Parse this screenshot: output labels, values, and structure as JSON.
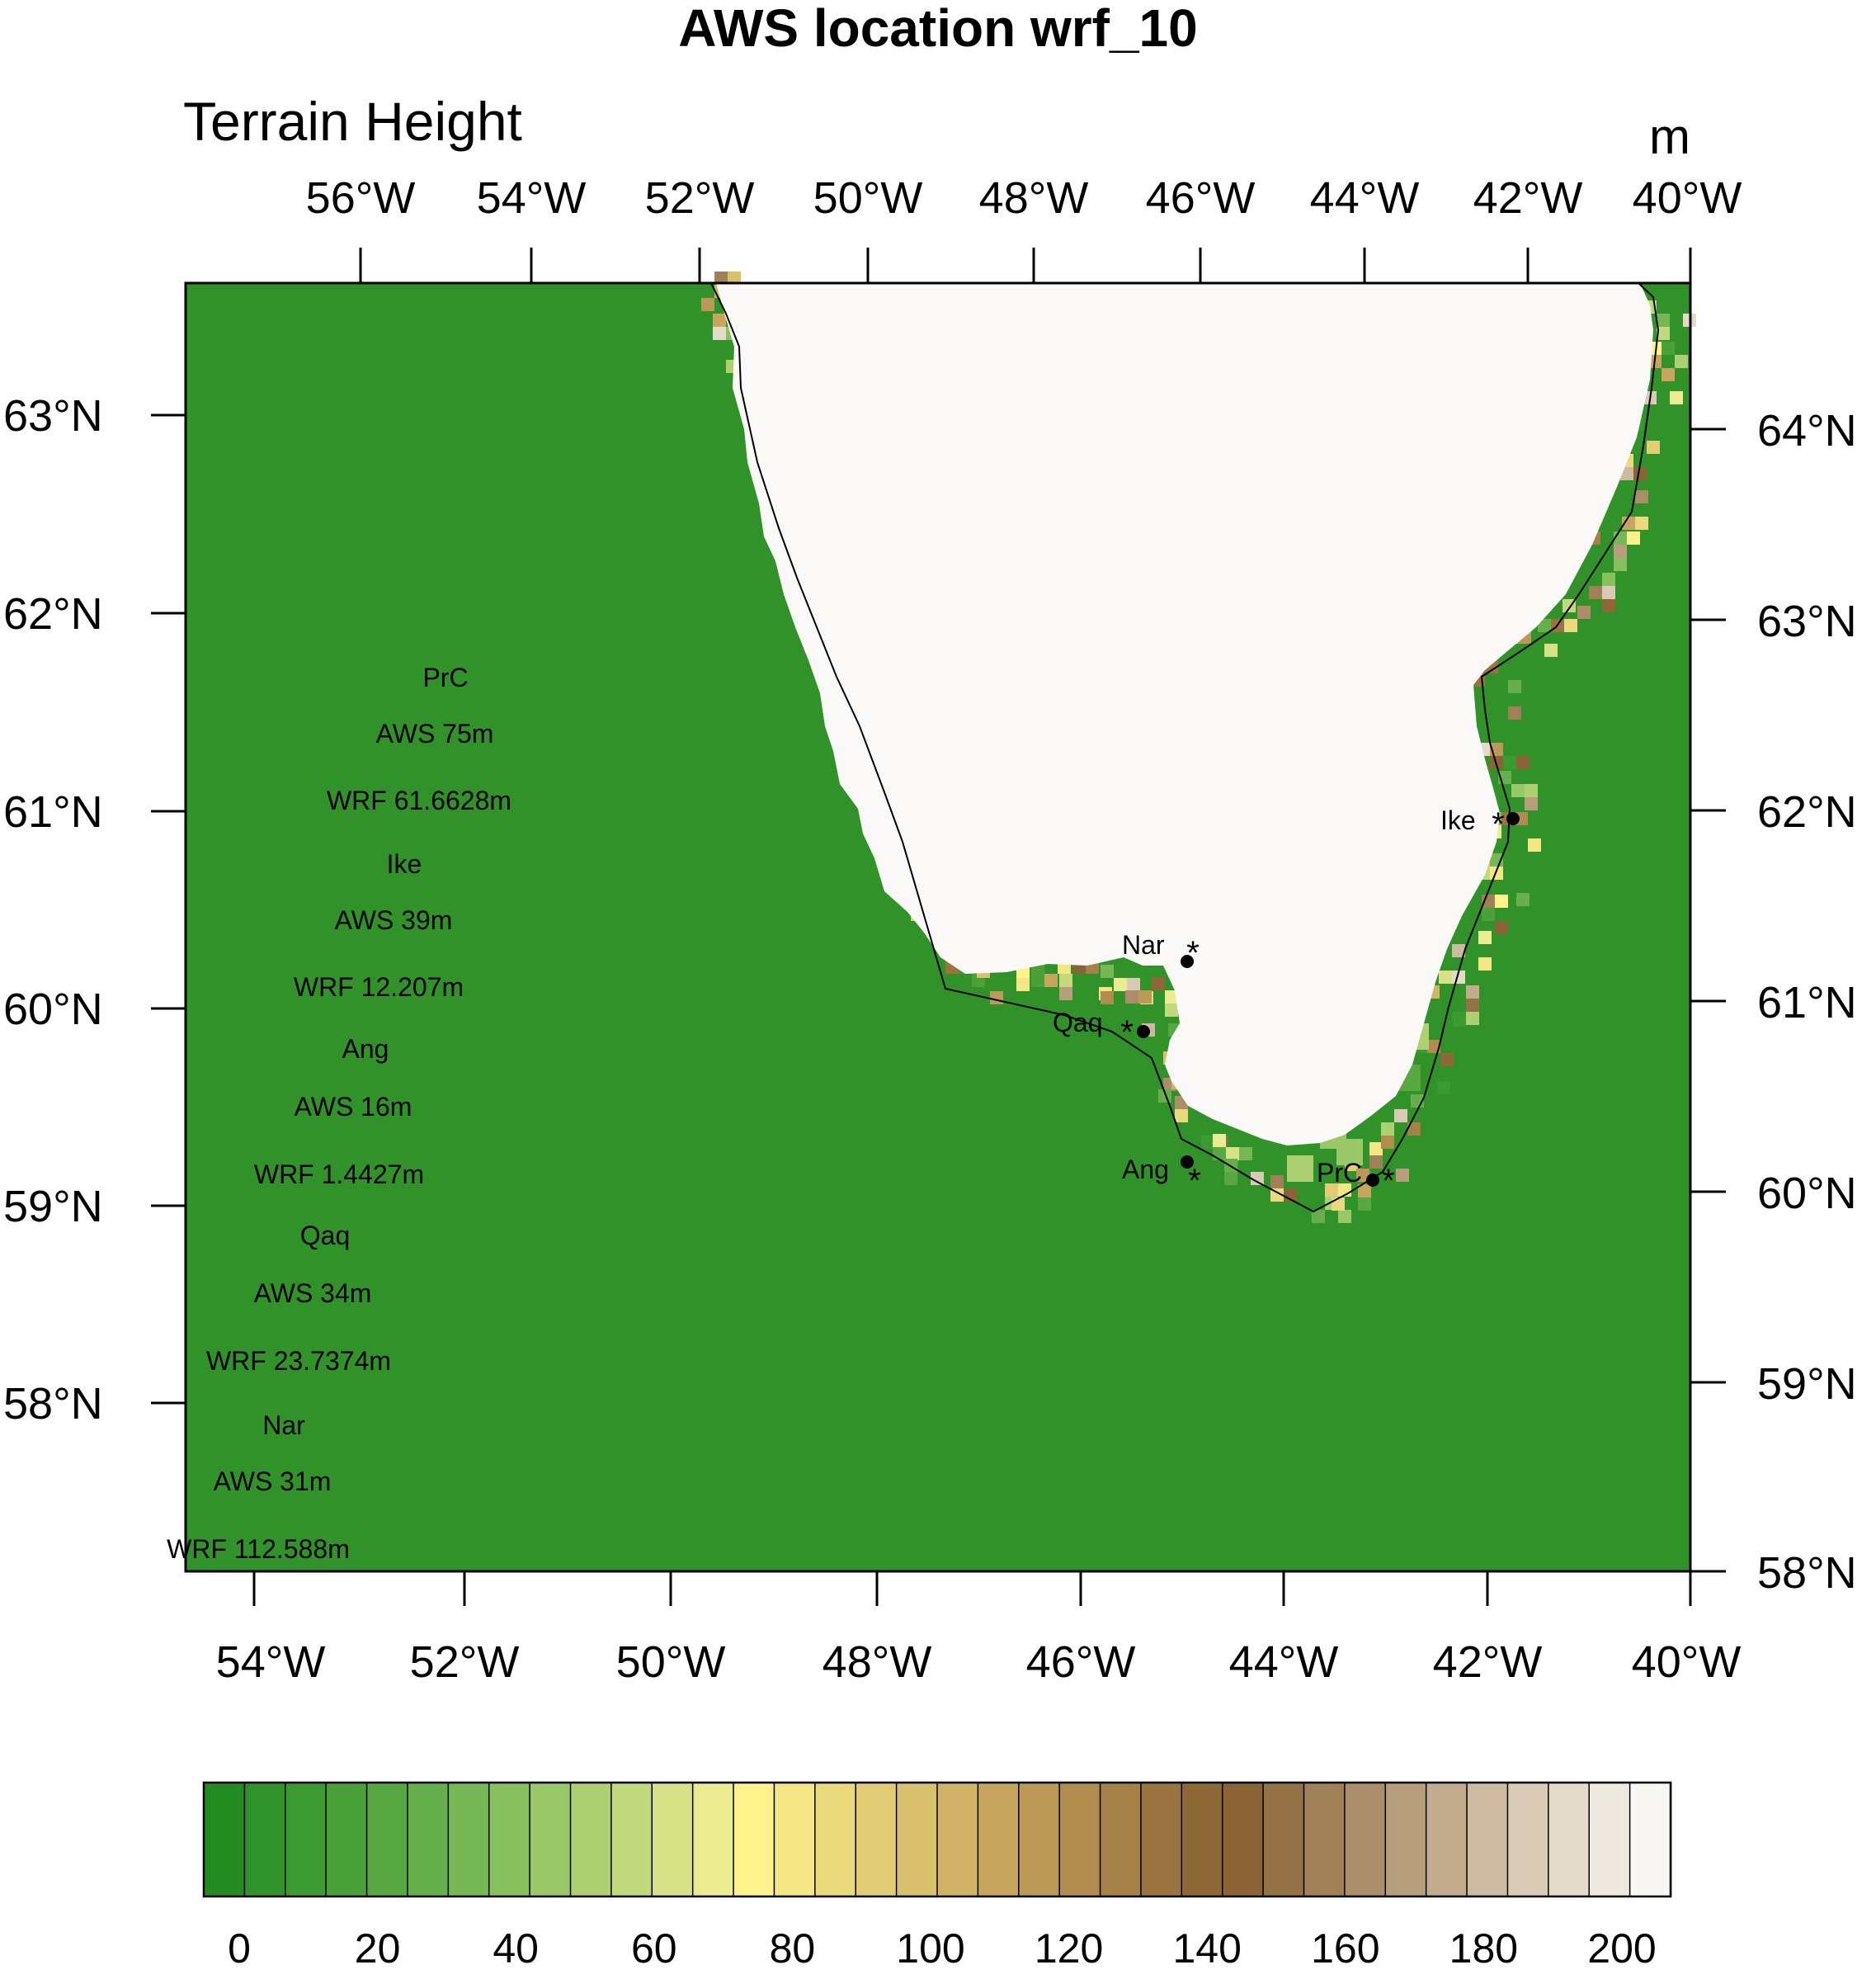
{
  "title": "AWS location wrf_10",
  "subtitle_left": "Terrain Height",
  "subtitle_right": "m",
  "axes": {
    "top_lon_labels": [
      "56°W",
      "54°W",
      "52°W",
      "50°W",
      "48°W",
      "46°W",
      "44°W",
      "42°W",
      "40°W"
    ],
    "bottom_lon_labels": [
      "54°W",
      "52°W",
      "50°W",
      "48°W",
      "46°W",
      "44°W",
      "42°W",
      "40°W"
    ],
    "left_lat_labels": [
      "63°N",
      "62°N",
      "61°N",
      "60°N",
      "59°N",
      "58°N"
    ],
    "right_lat_labels": [
      "64°N",
      "63°N",
      "62°N",
      "61°N",
      "60°N",
      "59°N",
      "58°N"
    ]
  },
  "stations": [
    {
      "code": "Ike",
      "aws": "AWS 39m",
      "wrf": "WRF 12.207m"
    },
    {
      "code": "Nar",
      "aws": "AWS 31m",
      "wrf": "WRF 112.588m"
    },
    {
      "code": "Qaq",
      "aws": "AWS 34m",
      "wrf": "WRF 23.7374m"
    },
    {
      "code": "Ang",
      "aws": "AWS 16m",
      "wrf": "WRF 1.4427m"
    },
    {
      "code": "PrC",
      "aws": "AWS 75m",
      "wrf": "WRF 61.6628m"
    }
  ],
  "legend_lines": [
    "PrC",
    "AWS 75m",
    "WRF 61.6628m",
    "Ike",
    "AWS 39m",
    "WRF 12.207m",
    "Ang",
    "AWS 16m",
    "WRF 1.4427m",
    "Qaq",
    "AWS 34m",
    "WRF 23.7374m",
    "Nar",
    "AWS 31m",
    "WRF 112.588m"
  ],
  "colorbar": {
    "min": 0,
    "max": 200,
    "step": 5,
    "tick_labels": [
      "0",
      "20",
      "40",
      "60",
      "80",
      "100",
      "120",
      "140",
      "160",
      "180",
      "200"
    ],
    "colors": [
      "#238b22",
      "#2f922a",
      "#3c9a32",
      "#4aa13a",
      "#58a842",
      "#66b04b",
      "#76b855",
      "#88c05e",
      "#9ac869",
      "#aed073",
      "#c2d97e",
      "#d7e288",
      "#ebeb92",
      "#fdf28c",
      "#f4e585",
      "#ebd97d",
      "#e2cc76",
      "#d9c06e",
      "#d0b366",
      "#c6a65f",
      "#bb9a57",
      "#b08d4f",
      "#a58147",
      "#9a7440",
      "#8f6838",
      "#8a6336",
      "#957146",
      "#a08057",
      "#ab8e69",
      "#b69d7b",
      "#c1ac8d",
      "#ccbba0",
      "#d8cab4",
      "#e3dac9",
      "#eee9de",
      "#f9f7f4"
    ]
  },
  "map_colors": {
    "ocean": "#31922a",
    "ice": "#faf9f8"
  }
}
